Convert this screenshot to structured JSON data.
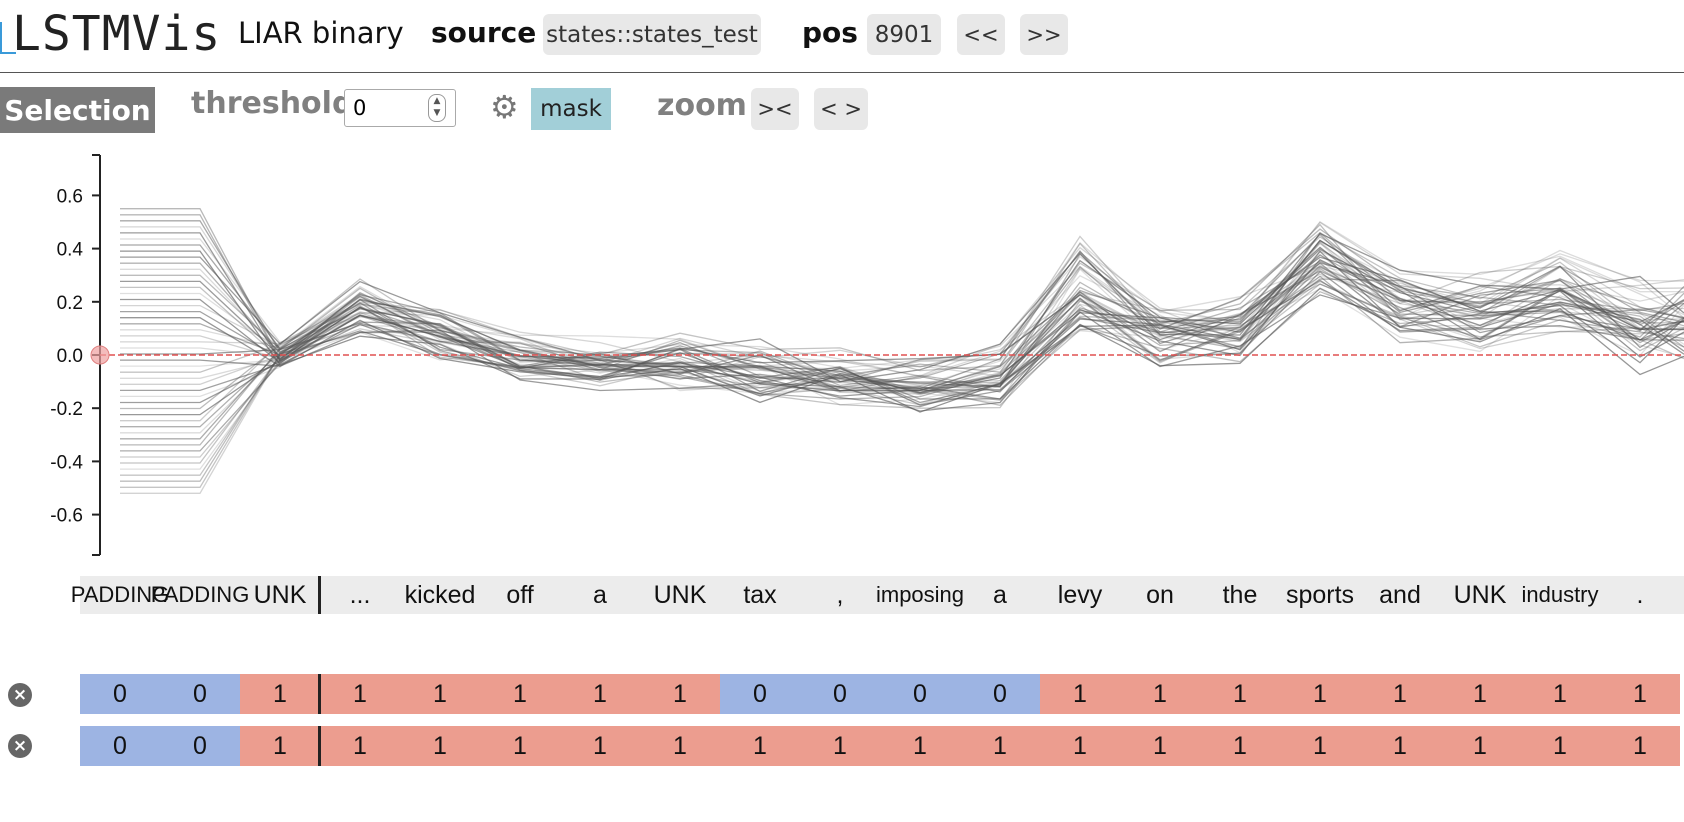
{
  "header": {
    "logo": "LSTMVis",
    "project": "LIAR binary",
    "source_label": "source",
    "source_value": "states::states_test",
    "pos_label": "pos",
    "pos_value": "8901",
    "prev_label": "<<",
    "next_label": ">>"
  },
  "toolbar": {
    "selection_label": "Selection",
    "threshold_label": "threshold",
    "threshold_value": "0",
    "settings_icon": "gear-icon",
    "mask_label": "mask",
    "zoom_label": "zoom",
    "zoom_in_label": "><",
    "zoom_out_label": "< >"
  },
  "chart_data": {
    "type": "line",
    "yticks": [
      "0.6",
      "0.4",
      "0.2",
      "0.0",
      "-0.2",
      "-0.4",
      "-0.6"
    ],
    "ylim": [
      -0.75,
      0.75
    ],
    "threshold": 0.0,
    "threshold_color": "#e05050",
    "line_color": "#555555",
    "series_count": 48,
    "series_mean": [
      0.0,
      0.0,
      0.0,
      0.17,
      0.08,
      0.0,
      -0.03,
      -0.03,
      -0.06,
      -0.08,
      -0.1,
      -0.08,
      0.26,
      0.09,
      0.1,
      0.38,
      0.2,
      0.17,
      0.24,
      0.12,
      0.14
    ],
    "series_spread": [
      0.3,
      0.3,
      0.05,
      0.12,
      0.1,
      0.09,
      0.1,
      0.12,
      0.12,
      0.12,
      0.12,
      0.13,
      0.2,
      0.14,
      0.14,
      0.15,
      0.16,
      0.16,
      0.18,
      0.18,
      0.18
    ]
  },
  "words": [
    "PADDING",
    "PADDING",
    "UNK",
    "...",
    "kicked",
    "off",
    "a",
    "UNK",
    "tax",
    ",",
    "imposing",
    "a",
    "levy",
    "on",
    "the",
    "sports",
    "and",
    "UNK",
    "industry",
    "."
  ],
  "annotation_rows": [
    {
      "values": [
        "0",
        "0",
        "1",
        "1",
        "1",
        "1",
        "1",
        "1",
        "0",
        "0",
        "0",
        "0",
        "1",
        "1",
        "1",
        "1",
        "1",
        "1",
        "1",
        "1"
      ]
    },
    {
      "values": [
        "0",
        "0",
        "1",
        "1",
        "1",
        "1",
        "1",
        "1",
        "1",
        "1",
        "1",
        "1",
        "1",
        "1",
        "1",
        "1",
        "1",
        "1",
        "1",
        "1"
      ]
    }
  ],
  "colors": {
    "zero": "#9db4e3",
    "one": "#ec9d8f",
    "mask": "#a2cfd8"
  },
  "remove_icon": "close-icon"
}
